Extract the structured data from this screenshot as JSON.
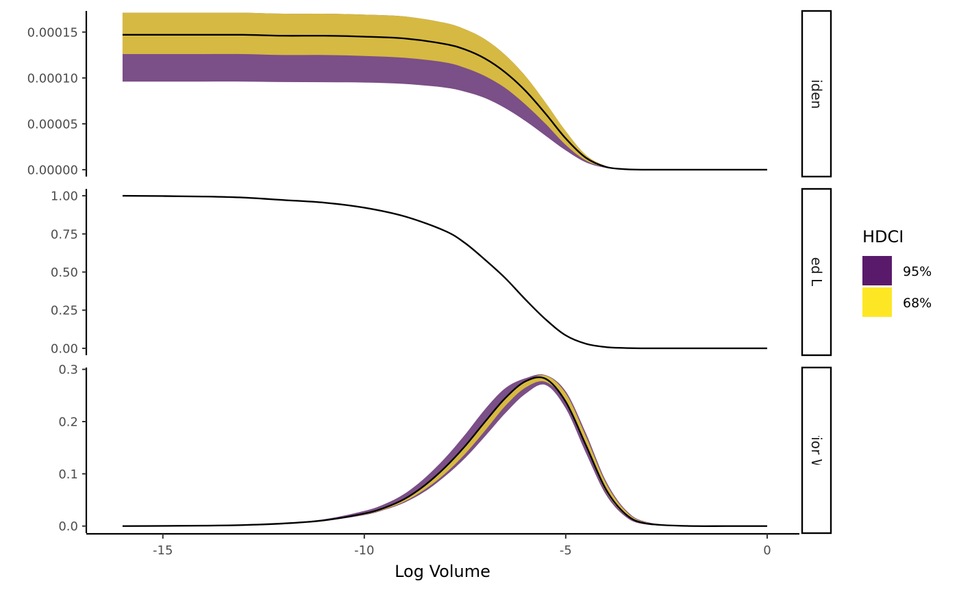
{
  "chart_data": {
    "type": "area",
    "xlabel": "Log Volume",
    "x_ticks": [
      -15,
      -10,
      -5,
      0
    ],
    "xlim": [
      -16.9,
      0.8
    ],
    "legend": {
      "title": "HDCI",
      "position": "right",
      "entries": [
        {
          "label": "95%",
          "color": "#5a1a6b"
        },
        {
          "label": "68%",
          "color": "#fde725"
        }
      ]
    },
    "band_colors": {
      "95%": "#7b4f87",
      "68%": "#d6b942"
    },
    "line_color": "#000000",
    "panels": [
      {
        "strip": "Evidence",
        "ylim": [
          -7.5e-06,
          0.000173
        ],
        "y_ticks": [
          {
            "value": 0,
            "label": "0.00000"
          },
          {
            "value": 5e-05,
            "label": "0.00005"
          },
          {
            "value": 0.0001,
            "label": "0.00010"
          },
          {
            "value": 0.00015,
            "label": "0.00015"
          }
        ],
        "x": [
          -16,
          -15,
          -14,
          -13,
          -12,
          -11,
          -10,
          -9,
          -8,
          -7.5,
          -7,
          -6.5,
          -6,
          -5.5,
          -5,
          -4.5,
          -4,
          -3.5,
          -3,
          -2,
          -1,
          0
        ],
        "line": [
          0.000147,
          0.000147,
          0.000147,
          0.000147,
          0.000146,
          0.000146,
          0.000145,
          0.000143,
          0.000137,
          0.000131,
          0.000121,
          0.000106,
          8.6e-05,
          6.1e-05,
          3.4e-05,
          1.3e-05,
          3e-06,
          5e-07,
          0,
          0,
          0,
          0
        ],
        "band95": {
          "lower": [
            9.6e-05,
            9.6e-05,
            9.6e-05,
            9.6e-05,
            9.55e-05,
            9.53e-05,
            9.5e-05,
            9.35e-05,
            8.95e-05,
            8.5e-05,
            7.8e-05,
            6.7e-05,
            5.3e-05,
            3.7e-05,
            2.1e-05,
            8e-06,
            2e-06,
            3e-07,
            0,
            0,
            0,
            0
          ],
          "upper": [
            0.000171,
            0.000171,
            0.000171,
            0.000171,
            0.00017,
            0.00017,
            0.000169,
            0.000167,
            0.00016,
            0.000153,
            0.000142,
            0.000125,
            0.000102,
            7.3e-05,
            4.2e-05,
            1.6e-05,
            4e-06,
            7e-07,
            0,
            0,
            0,
            0
          ]
        },
        "band68": {
          "lower": [
            0.000126,
            0.000126,
            0.000126,
            0.000126,
            0.000125,
            0.000125,
            0.000124,
            0.000122,
            0.000117,
            0.000111,
            0.000102,
            8.9e-05,
            7.1e-05,
            5e-05,
            2.7e-05,
            1e-05,
            2.5e-06,
            4e-07,
            0,
            0,
            0,
            0
          ],
          "upper": [
            0.000171,
            0.000171,
            0.000171,
            0.000171,
            0.00017,
            0.00017,
            0.000169,
            0.000167,
            0.00016,
            0.000153,
            0.000142,
            0.000125,
            0.000102,
            7.3e-05,
            4.2e-05,
            1.6e-05,
            4e-06,
            7e-07,
            0,
            0,
            0,
            0
          ]
        }
      },
      {
        "strip": "Normalized Likelihood",
        "ylim": [
          -0.045,
          1.045
        ],
        "y_ticks": [
          {
            "value": 0,
            "label": "0.00"
          },
          {
            "value": 0.25,
            "label": "0.25"
          },
          {
            "value": 0.5,
            "label": "0.50"
          },
          {
            "value": 0.75,
            "label": "0.75"
          },
          {
            "value": 1,
            "label": "1.00"
          }
        ],
        "x": [
          -16,
          -15,
          -14,
          -13,
          -12,
          -11,
          -10,
          -9,
          -8,
          -7.5,
          -7,
          -6.5,
          -6,
          -5.5,
          -5,
          -4.5,
          -4,
          -3.5,
          -3,
          -2,
          -1,
          0
        ],
        "line": [
          1.0,
          0.998,
          0.995,
          0.988,
          0.972,
          0.955,
          0.922,
          0.865,
          0.77,
          0.69,
          0.58,
          0.46,
          0.32,
          0.19,
          0.085,
          0.03,
          0.008,
          0.002,
          0,
          0,
          0,
          0
        ]
      },
      {
        "strip": "Posterior Weight",
        "ylim": [
          -0.0135,
          0.3035
        ],
        "y_ticks": [
          {
            "value": 0,
            "label": "0.0"
          },
          {
            "value": 0.1,
            "label": "0.1"
          },
          {
            "value": 0.2,
            "label": "0.2"
          },
          {
            "value": 0.3,
            "label": "0.3"
          }
        ],
        "x": [
          -16,
          -15,
          -14,
          -13,
          -12,
          -11,
          -10,
          -9.5,
          -9,
          -8.5,
          -8,
          -7.5,
          -7,
          -6.5,
          -6,
          -5.5,
          -5,
          -4.5,
          -4,
          -3.5,
          -3,
          -2,
          -1,
          0
        ],
        "line": [
          0,
          0.0003,
          0.0008,
          0.002,
          0.005,
          0.011,
          0.024,
          0.035,
          0.052,
          0.078,
          0.112,
          0.153,
          0.2,
          0.245,
          0.277,
          0.282,
          0.238,
          0.155,
          0.07,
          0.022,
          0.005,
          0.0003,
          0,
          0
        ],
        "band95": {
          "lower": [
            0,
            0.0003,
            0.0007,
            0.0018,
            0.0045,
            0.01,
            0.021,
            0.031,
            0.045,
            0.066,
            0.095,
            0.13,
            0.172,
            0.216,
            0.253,
            0.27,
            0.225,
            0.14,
            0.06,
            0.017,
            0.003,
            0.0002,
            0,
            0
          ],
          "upper": [
            0,
            0.0004,
            0.001,
            0.0025,
            0.006,
            0.013,
            0.029,
            0.042,
            0.062,
            0.092,
            0.13,
            0.175,
            0.224,
            0.264,
            0.283,
            0.289,
            0.258,
            0.178,
            0.086,
            0.03,
            0.008,
            0.0006,
            0,
            0
          ]
        },
        "band68": {
          "lower": [
            0,
            0.0003,
            0.0007,
            0.0018,
            0.0046,
            0.0102,
            0.022,
            0.032,
            0.047,
            0.07,
            0.1,
            0.138,
            0.183,
            0.23,
            0.265,
            0.276,
            0.238,
            0.152,
            0.066,
            0.02,
            0.004,
            0.0003,
            0,
            0
          ],
          "upper": [
            0,
            0.0003,
            0.0008,
            0.0021,
            0.0052,
            0.0115,
            0.025,
            0.036,
            0.053,
            0.079,
            0.113,
            0.153,
            0.198,
            0.243,
            0.276,
            0.288,
            0.254,
            0.172,
            0.082,
            0.028,
            0.007,
            0.0005,
            0,
            0
          ]
        }
      }
    ]
  }
}
